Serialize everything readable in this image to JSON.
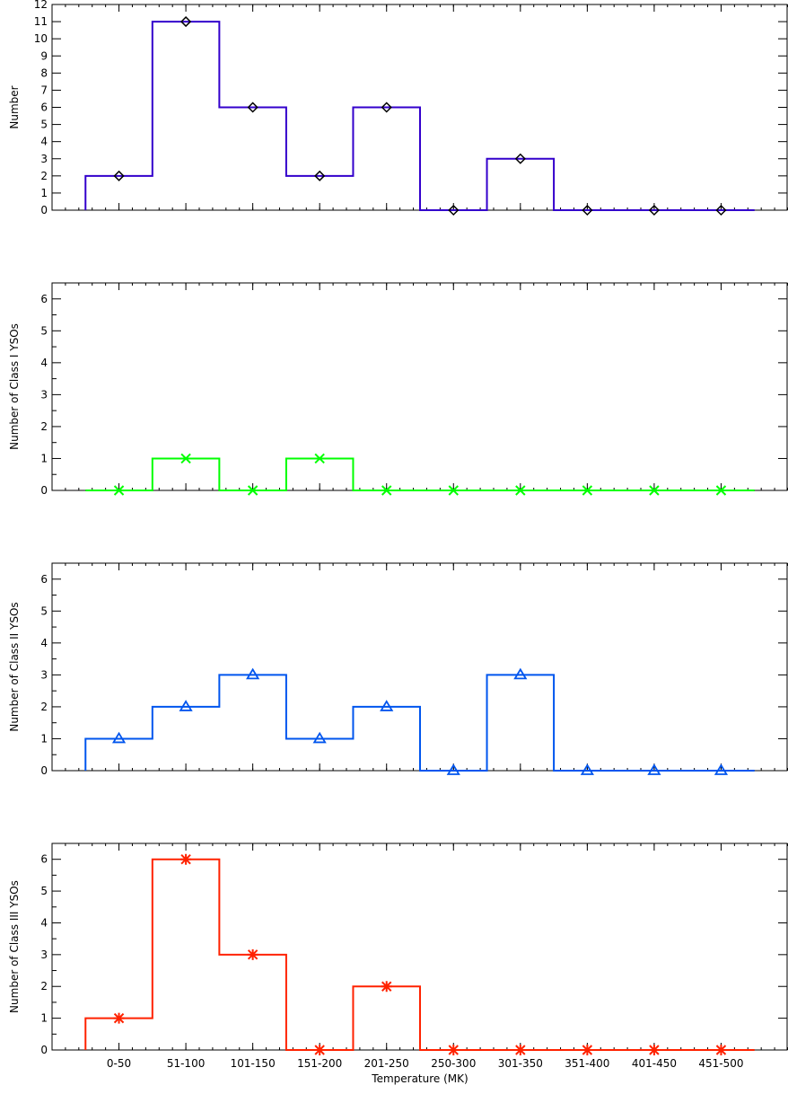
{
  "chart_data": [
    {
      "type": "bar",
      "subtype": "histogram-step",
      "ylabel": "Number",
      "ylim": [
        0,
        12
      ],
      "yticks": [
        0,
        1,
        2,
        3,
        4,
        5,
        6,
        7,
        8,
        9,
        10,
        11,
        12
      ],
      "color": "#3300cc",
      "marker": "diamond",
      "marker_color": "#000000",
      "categories": [
        "0-50",
        "51-100",
        "101-150",
        "151-200",
        "201-250",
        "250-300",
        "301-350",
        "351-400",
        "401-450",
        "451-500"
      ],
      "values": [
        2,
        11,
        6,
        2,
        6,
        0,
        3,
        0,
        0,
        0
      ]
    },
    {
      "type": "bar",
      "subtype": "histogram-step",
      "ylabel": "Number of Class I YSOs",
      "ylim": [
        0,
        6.5
      ],
      "yticks": [
        0,
        1,
        2,
        3,
        4,
        5,
        6
      ],
      "color": "#00ff00",
      "marker": "x",
      "marker_color": "#00ff00",
      "categories": [
        "0-50",
        "51-100",
        "101-150",
        "151-200",
        "201-250",
        "250-300",
        "301-350",
        "351-400",
        "401-450",
        "451-500"
      ],
      "values": [
        0,
        1,
        0,
        1,
        0,
        0,
        0,
        0,
        0,
        0
      ]
    },
    {
      "type": "bar",
      "subtype": "histogram-step",
      "ylabel": "Number of Class II YSOs",
      "ylim": [
        0,
        6.5
      ],
      "yticks": [
        0,
        1,
        2,
        3,
        4,
        5,
        6
      ],
      "color": "#0055ee",
      "marker": "triangle",
      "marker_color": "#0055ee",
      "categories": [
        "0-50",
        "51-100",
        "101-150",
        "151-200",
        "201-250",
        "250-300",
        "301-350",
        "351-400",
        "401-450",
        "451-500"
      ],
      "values": [
        1,
        2,
        3,
        1,
        2,
        0,
        3,
        0,
        0,
        0
      ]
    },
    {
      "type": "bar",
      "subtype": "histogram-step",
      "ylabel": "Number of Class III YSOs",
      "xlabel": "Temperature (MK)",
      "ylim": [
        0,
        6.5
      ],
      "yticks": [
        0,
        1,
        2,
        3,
        4,
        5,
        6
      ],
      "color": "#ff2200",
      "marker": "asterisk",
      "marker_color": "#ff2200",
      "categories": [
        "0-50",
        "51-100",
        "101-150",
        "151-200",
        "201-250",
        "250-300",
        "301-350",
        "351-400",
        "401-450",
        "451-500"
      ],
      "values": [
        1,
        6,
        3,
        0,
        2,
        0,
        0,
        0,
        0,
        0
      ]
    }
  ]
}
